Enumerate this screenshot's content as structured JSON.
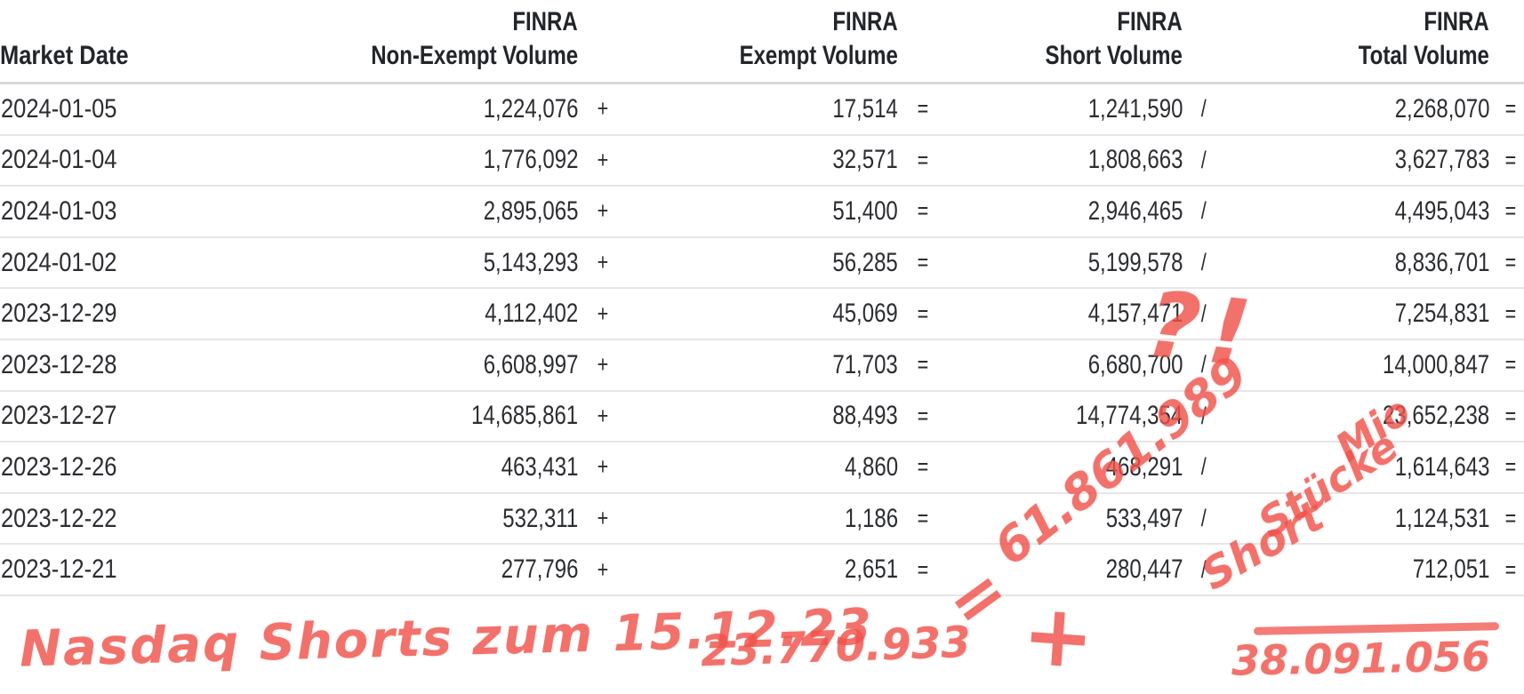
{
  "table": {
    "columns": [
      {
        "line1": "",
        "line2": "Market Date"
      },
      {
        "line1": "FINRA",
        "line2": "Non-Exempt Volume"
      },
      {
        "line1": "FINRA",
        "line2": "Exempt Volume"
      },
      {
        "line1": "FINRA",
        "line2": "Short Volume"
      },
      {
        "line1": "FINRA",
        "line2": "Total Volume"
      }
    ],
    "row_operators": [
      "+",
      "=",
      "/",
      "="
    ],
    "rows": [
      {
        "date": "2024-01-05",
        "non_exempt": "1,224,076",
        "exempt": "17,514",
        "short": "1,241,590",
        "total": "2,268,070"
      },
      {
        "date": "2024-01-04",
        "non_exempt": "1,776,092",
        "exempt": "32,571",
        "short": "1,808,663",
        "total": "3,627,783"
      },
      {
        "date": "2024-01-03",
        "non_exempt": "2,895,065",
        "exempt": "51,400",
        "short": "2,946,465",
        "total": "4,495,043"
      },
      {
        "date": "2024-01-02",
        "non_exempt": "5,143,293",
        "exempt": "56,285",
        "short": "5,199,578",
        "total": "8,836,701"
      },
      {
        "date": "2023-12-29",
        "non_exempt": "4,112,402",
        "exempt": "45,069",
        "short": "4,157,471",
        "total": "7,254,831"
      },
      {
        "date": "2023-12-28",
        "non_exempt": "6,608,997",
        "exempt": "71,703",
        "short": "6,680,700",
        "total": "14,000,847"
      },
      {
        "date": "2023-12-27",
        "non_exempt": "14,685,861",
        "exempt": "88,493",
        "short": "14,774,354",
        "total": "23,652,238"
      },
      {
        "date": "2023-12-26",
        "non_exempt": "463,431",
        "exempt": "4,860",
        "short": "468,291",
        "total": "1,614,643"
      },
      {
        "date": "2023-12-22",
        "non_exempt": "532,311",
        "exempt": "1,186",
        "short": "533,497",
        "total": "1,124,531"
      },
      {
        "date": "2023-12-21",
        "non_exempt": "277,796",
        "exempt": "2,651",
        "short": "280,447",
        "total": "712,051"
      }
    ]
  },
  "annotations": {
    "marker_color": "#f0524b",
    "question_exclamation": "?!",
    "equals_mark": "=",
    "sum_total": "61.861.989",
    "mio": "Mio",
    "stuecke": "Stücke",
    "short": "Short",
    "bottom_label": "Nasdaq Shorts zum 15.12.23",
    "prior_shorts": "23.770.933",
    "plus_mark": "+",
    "short_column_sum": "38.091.056"
  }
}
